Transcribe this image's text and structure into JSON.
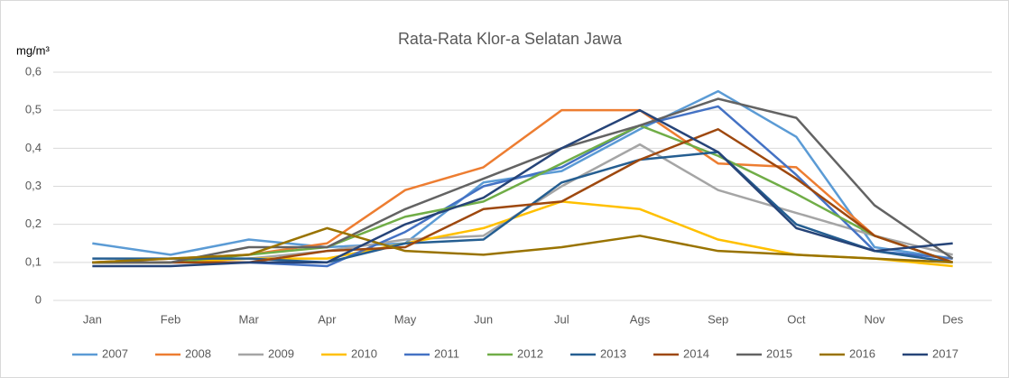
{
  "chart_data": {
    "type": "line",
    "title": "Rata-Rata Klor-a Selatan Jawa",
    "y_label": "mg/m³",
    "categories": [
      "Jan",
      "Feb",
      "Mar",
      "Apr",
      "May",
      "Jun",
      "Jul",
      "Ags",
      "Sep",
      "Oct",
      "Nov",
      "Des"
    ],
    "ylim": [
      0,
      0.6
    ],
    "yticks": [
      0,
      {
        "value": 0.1,
        "label": "0,1"
      },
      {
        "value": 0.2,
        "label": "0,2"
      },
      {
        "value": 0.3,
        "label": "0,3"
      },
      {
        "value": 0.4,
        "label": "0,4"
      },
      {
        "value": 0.5,
        "label": "0,5"
      },
      {
        "value": 0.6,
        "label": "0,6"
      }
    ],
    "grid": true,
    "legend": "bottom",
    "series": [
      {
        "name": "2007",
        "color": "#5b9bd5",
        "values": [
          0.15,
          0.12,
          0.16,
          0.14,
          0.15,
          0.31,
          0.34,
          0.45,
          0.55,
          0.43,
          0.14,
          0.11
        ]
      },
      {
        "name": "2008",
        "color": "#ed7d31",
        "values": [
          0.1,
          0.11,
          0.12,
          0.15,
          0.29,
          0.35,
          0.5,
          0.5,
          0.36,
          0.35,
          0.17,
          0.1
        ]
      },
      {
        "name": "2009",
        "color": "#a5a5a5",
        "values": [
          0.1,
          0.1,
          0.11,
          0.13,
          0.16,
          0.17,
          0.3,
          0.41,
          0.29,
          0.23,
          0.17,
          0.12
        ]
      },
      {
        "name": "2010",
        "color": "#ffc000",
        "values": [
          0.1,
          0.1,
          0.11,
          0.11,
          0.15,
          0.19,
          0.26,
          0.24,
          0.16,
          0.12,
          0.11,
          0.09
        ]
      },
      {
        "name": "2011",
        "color": "#4472c4",
        "values": [
          0.1,
          0.1,
          0.1,
          0.09,
          0.18,
          0.3,
          0.35,
          0.46,
          0.51,
          0.33,
          0.13,
          0.11
        ]
      },
      {
        "name": "2012",
        "color": "#70ad47",
        "values": [
          0.1,
          0.1,
          0.12,
          0.14,
          0.22,
          0.26,
          0.36,
          0.46,
          0.38,
          0.28,
          0.17,
          0.1
        ]
      },
      {
        "name": "2013",
        "color": "#255e91",
        "values": [
          0.11,
          0.11,
          0.11,
          0.1,
          0.15,
          0.16,
          0.31,
          0.37,
          0.39,
          0.2,
          0.13,
          0.1
        ]
      },
      {
        "name": "2014",
        "color": "#9e480e",
        "values": [
          0.1,
          0.1,
          0.1,
          0.13,
          0.14,
          0.24,
          0.26,
          0.37,
          0.45,
          0.32,
          0.17,
          0.1
        ]
      },
      {
        "name": "2015",
        "color": "#636363",
        "values": [
          0.1,
          0.1,
          0.14,
          0.14,
          0.24,
          0.32,
          0.4,
          0.46,
          0.53,
          0.48,
          0.25,
          0.11
        ]
      },
      {
        "name": "2016",
        "color": "#997300",
        "values": [
          0.1,
          0.11,
          0.12,
          0.19,
          0.13,
          0.12,
          0.14,
          0.17,
          0.13,
          0.12,
          0.11,
          0.1
        ]
      },
      {
        "name": "2017",
        "color": "#264478",
        "values": [
          0.09,
          0.09,
          0.1,
          0.1,
          0.2,
          0.27,
          0.4,
          0.5,
          0.39,
          0.19,
          0.13,
          0.15
        ]
      }
    ]
  }
}
